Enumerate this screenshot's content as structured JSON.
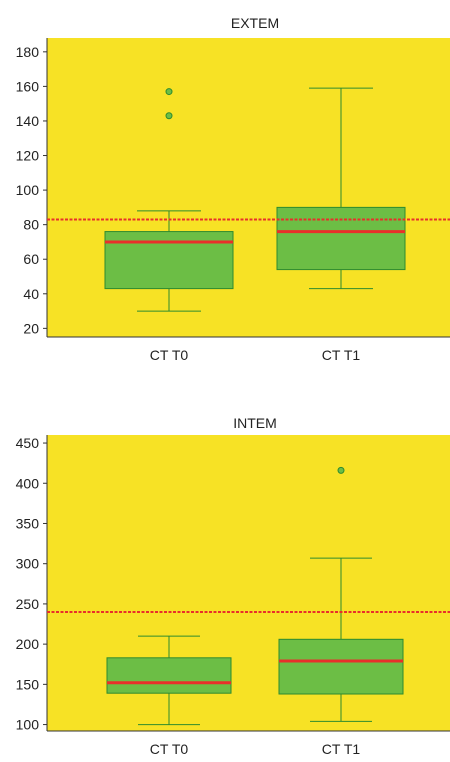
{
  "colors": {
    "plot_bg": "#f7e225",
    "box_fill": "#6cbe45",
    "box_stroke": "#2e8b2e",
    "whisker": "#2e8b2e",
    "median": "#e8302a",
    "reference_line": "#e8302a",
    "outlier_fill": "#6cbe45",
    "axis": "#333333"
  },
  "chart_data": [
    {
      "type": "box",
      "title": "EXTEM",
      "categories": [
        "CT T0",
        "CT T1"
      ],
      "yticks": [
        20,
        40,
        60,
        80,
        100,
        120,
        140,
        160,
        180
      ],
      "ylim": [
        15,
        188
      ],
      "grid": false,
      "reference_line": 83,
      "boxes": [
        {
          "category": "CT T0",
          "whisker_low": 30,
          "q1": 43,
          "median": 70,
          "q3": 76,
          "whisker_high": 88,
          "outliers": [
            143,
            157
          ]
        },
        {
          "category": "CT T1",
          "whisker_low": 43,
          "q1": 54,
          "median": 76,
          "q3": 90,
          "whisker_high": 159,
          "outliers": []
        }
      ]
    },
    {
      "type": "box",
      "title": "INTEM",
      "categories": [
        "CT T0",
        "CT T1"
      ],
      "yticks": [
        100,
        150,
        200,
        250,
        300,
        350,
        400,
        450
      ],
      "ylim": [
        92,
        460
      ],
      "grid": false,
      "reference_line": 240,
      "boxes": [
        {
          "category": "CT T0",
          "whisker_low": 100,
          "q1": 139,
          "median": 152,
          "q3": 183,
          "whisker_high": 210,
          "outliers": []
        },
        {
          "category": "CT T1",
          "whisker_low": 104,
          "q1": 138,
          "median": 179,
          "q3": 206,
          "whisker_high": 307,
          "outliers": [
            416
          ]
        }
      ]
    }
  ]
}
